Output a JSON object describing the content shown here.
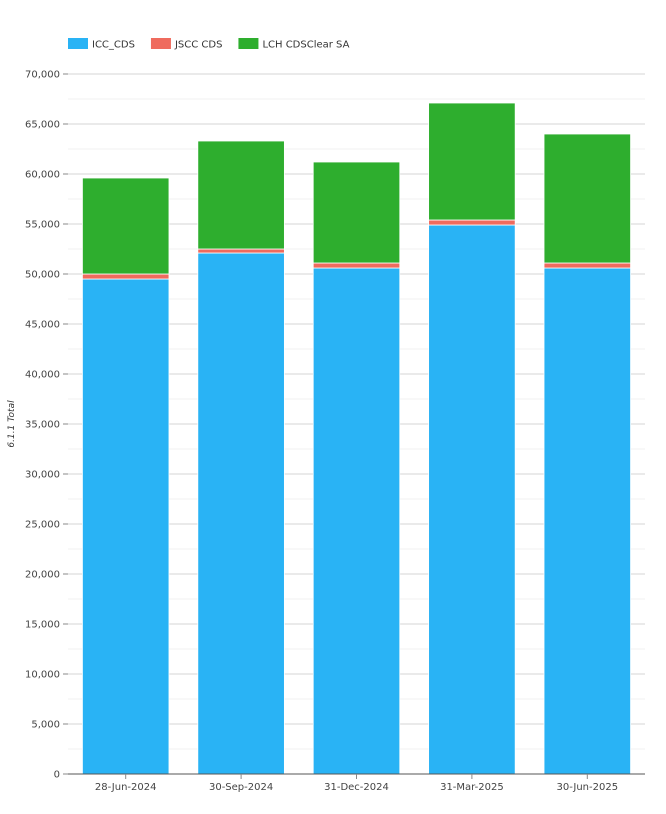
{
  "chart_data": {
    "type": "bar",
    "stacked": true,
    "categories": [
      "28-Jun-2024",
      "30-Sep-2024",
      "31-Dec-2024",
      "31-Mar-2025",
      "30-Jun-2025"
    ],
    "series": [
      {
        "name": "ICC_CDS",
        "color": "#29b3f5",
        "values": [
          49500,
          52100,
          50600,
          54900,
          50600
        ]
      },
      {
        "name": "JSCC CDS",
        "color": "#ef6b5e",
        "values": [
          500,
          400,
          500,
          500,
          500
        ]
      },
      {
        "name": "LCH CDSClear SA",
        "color": "#2eae2e",
        "values": [
          9600,
          10800,
          10100,
          11700,
          12900
        ]
      }
    ],
    "title": "",
    "xlabel": "",
    "ylabel": "6.1.1 Total",
    "ylim": [
      0,
      70000
    ],
    "yticks": [
      0,
      5000,
      10000,
      15000,
      20000,
      25000,
      30000,
      35000,
      40000,
      45000,
      50000,
      55000,
      60000,
      65000,
      70000
    ],
    "ytick_labels": [
      "0",
      "5,000",
      "10,000",
      "15,000",
      "20,000",
      "25,000",
      "30,000",
      "35,000",
      "40,000",
      "45,000",
      "50,000",
      "55,000",
      "60,000",
      "65,000",
      "70,000"
    ],
    "grid": true,
    "legend": "top-left"
  }
}
